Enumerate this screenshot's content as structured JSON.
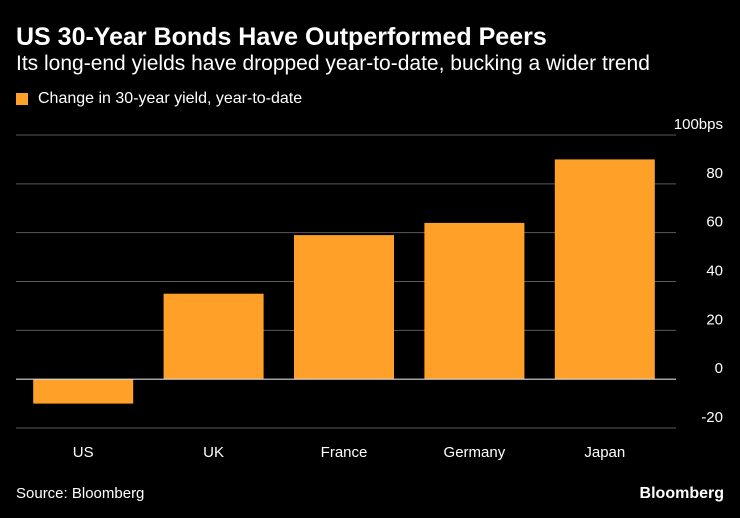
{
  "header": {
    "title": "US 30-Year Bonds Have Outperformed Peers",
    "subtitle": "Its long-end yields have dropped year-to-date, bucking a wider trend"
  },
  "legend": {
    "label": "Change in 30-year yield, year-to-date"
  },
  "footer": {
    "source": "Source: Bloomberg",
    "brand": "Bloomberg"
  },
  "colors": {
    "bar": "#FFA028",
    "grid": "#5a5a5a",
    "zero_line": "#d9d9d9",
    "text": "#ffffff"
  },
  "chart_data": {
    "type": "bar",
    "title": "US 30-Year Bonds Have Outperformed Peers",
    "subtitle": "Its long-end yields have dropped year-to-date, bucking a wider trend",
    "categories": [
      "US",
      "UK",
      "France",
      "Germany",
      "Japan"
    ],
    "series": [
      {
        "name": "Change in 30-year yield, year-to-date",
        "values": [
          -10,
          35,
          59,
          64,
          90
        ]
      }
    ],
    "xlabel": "",
    "ylabel": "bps",
    "ylim": [
      -20,
      100
    ],
    "yticks": [
      -20,
      0,
      20,
      40,
      60,
      80,
      100
    ],
    "ytick_labels": [
      "-20",
      "0",
      "20",
      "40",
      "60",
      "80",
      "100bps"
    ],
    "grid": true,
    "legend_position": "top-left",
    "y_axis_side": "right"
  }
}
